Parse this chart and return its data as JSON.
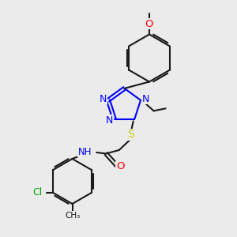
{
  "bg_color": "#ebebeb",
  "bond_color": "#1a1a1a",
  "n_color": "#0000ff",
  "o_color": "#ff0000",
  "s_color": "#cccc00",
  "cl_color": "#00aa00",
  "line_width": 1.5,
  "figsize": [
    3.0,
    3.0
  ],
  "dpi": 100,
  "xlim": [
    0,
    10
  ],
  "ylim": [
    0,
    10
  ]
}
